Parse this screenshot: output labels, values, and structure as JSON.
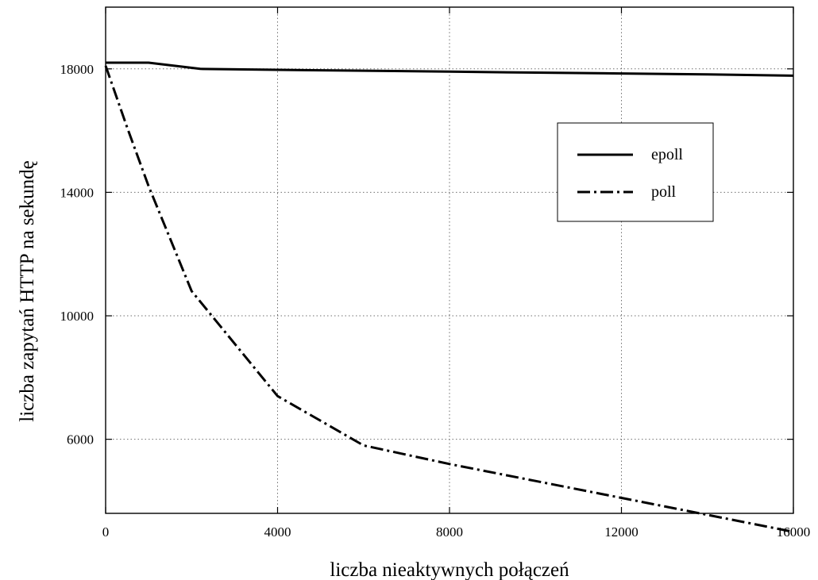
{
  "chart_data": {
    "type": "line",
    "title": "",
    "xlabel": "liczba nieaktywnych połączeń",
    "ylabel": "liczba zapytań HTTP na sekundę",
    "xlim": [
      0,
      16000
    ],
    "ylim": [
      3600,
      20000
    ],
    "xticks": [
      0,
      4000,
      8000,
      12000,
      16000
    ],
    "yticks": [
      6000,
      10000,
      14000,
      18000
    ],
    "grid": true,
    "legend_position": "top-right",
    "series": [
      {
        "name": "epoll",
        "style": "solid",
        "color": "#000000",
        "x": [
          0,
          1000,
          2200,
          4000,
          6000,
          8000,
          10000,
          12000,
          14000,
          16000
        ],
        "y": [
          18200,
          18200,
          18000,
          17970,
          17940,
          17910,
          17880,
          17850,
          17820,
          17780
        ]
      },
      {
        "name": "poll",
        "style": "dashdot",
        "color": "#000000",
        "x": [
          0,
          500,
          1000,
          2000,
          4000,
          6000,
          8000,
          10000,
          12000,
          14000,
          16000
        ],
        "y": [
          18100,
          16100,
          14200,
          10800,
          7400,
          5800,
          5200,
          4650,
          4100,
          3550,
          3000
        ]
      }
    ]
  }
}
